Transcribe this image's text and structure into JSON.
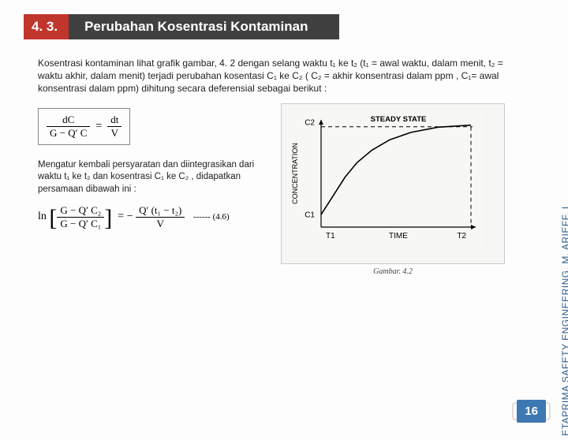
{
  "header": {
    "number": "4. 3.",
    "title": "Perubahan Kosentrasi Kontaminan"
  },
  "paragraph": "Kosentrasi kontaminan lihat  grafik gambar, 4. 2 dengan selang waktu t₁ ke t₂  (t₁ = awal waktu, dalam menit, t₂ = waktu akhir, dalam menit)  terjadi perubahan kosentasi C₁ ke C₂  ( C₂ = akhir konsentrasi dalam ppm , C₁= awal konsentrasi dalam ppm) dihitung secara deferensial sebagai berikut :",
  "equations": {
    "eq1_left_num": "dC",
    "eq1_left_den": "G − Q′ C",
    "eq1_right_num": "dt",
    "eq1_right_den": "V",
    "mid_text": "Mengatur kembali persyaratan dan diintegrasikan dari waktu t₁ ke t₂ dan kosentrasi C₁ ke C₂ , didapatkan persamaan dibawah ini :",
    "eq2_lhs_num": "G − Q′ C₂",
    "eq2_lhs_den": "G − Q′ C₁",
    "eq2_rhs_num": "Q′ (t₁ − t₂)",
    "eq2_rhs_den": "V",
    "eq2_tag": "------ (4.6)"
  },
  "graph": {
    "type": "line",
    "title_top": "STEADY STATE",
    "ylabel": "CONCENTRATION",
    "xlabel": "TIME",
    "y_ticks": [
      "C1",
      "C2"
    ],
    "x_ticks": [
      "T1",
      "T2"
    ],
    "curve_points": [
      [
        0.0,
        0.12
      ],
      [
        0.08,
        0.3
      ],
      [
        0.16,
        0.48
      ],
      [
        0.24,
        0.62
      ],
      [
        0.34,
        0.74
      ],
      [
        0.46,
        0.84
      ],
      [
        0.6,
        0.91
      ],
      [
        0.78,
        0.96
      ],
      [
        1.0,
        0.98
      ]
    ],
    "axis_color": "#000000",
    "curve_color": "#000000",
    "dash_color": "#000000",
    "background": "#f7f7f5",
    "caption": "Gambar. 4.2"
  },
  "side_label": "ETAPRIMA SAFETY ENGINEERING, M. ARIEFF. L",
  "page_number": "16"
}
